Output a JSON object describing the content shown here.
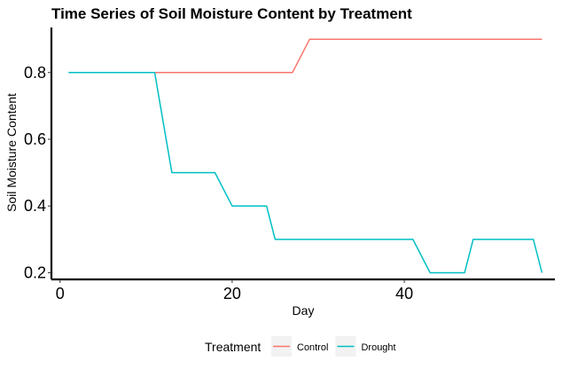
{
  "chart_data": {
    "type": "line",
    "title": "Time Series of Soil Moisture Content by Treatment",
    "xlabel": "Day",
    "ylabel": "Soil Moisture Content",
    "xlim": [
      -1,
      57.5
    ],
    "ylim": [
      0.18,
      0.935
    ],
    "x_ticks": [
      0,
      20,
      40
    ],
    "y_ticks": [
      0.2,
      0.4,
      0.6,
      0.8
    ],
    "x_tick_labels": [
      "0",
      "20",
      "40"
    ],
    "y_tick_labels": [
      "0.2",
      "0.4",
      "0.6",
      "0.8"
    ],
    "grid": false,
    "legend": {
      "title": "Treatment",
      "position": "bottom"
    },
    "series": [
      {
        "name": "Control",
        "color": "#F8766D",
        "points": [
          [
            1,
            0.8
          ],
          [
            27,
            0.8
          ],
          [
            29,
            0.9
          ],
          [
            56,
            0.9
          ]
        ]
      },
      {
        "name": "Drought",
        "color": "#00BFC4",
        "points": [
          [
            1,
            0.8
          ],
          [
            11,
            0.8
          ],
          [
            13,
            0.5
          ],
          [
            18,
            0.5
          ],
          [
            20,
            0.4
          ],
          [
            24,
            0.4
          ],
          [
            25,
            0.3
          ],
          [
            41,
            0.3
          ],
          [
            43,
            0.2
          ],
          [
            47,
            0.2
          ],
          [
            48,
            0.3
          ],
          [
            55,
            0.3
          ],
          [
            56,
            0.2
          ]
        ]
      }
    ]
  }
}
